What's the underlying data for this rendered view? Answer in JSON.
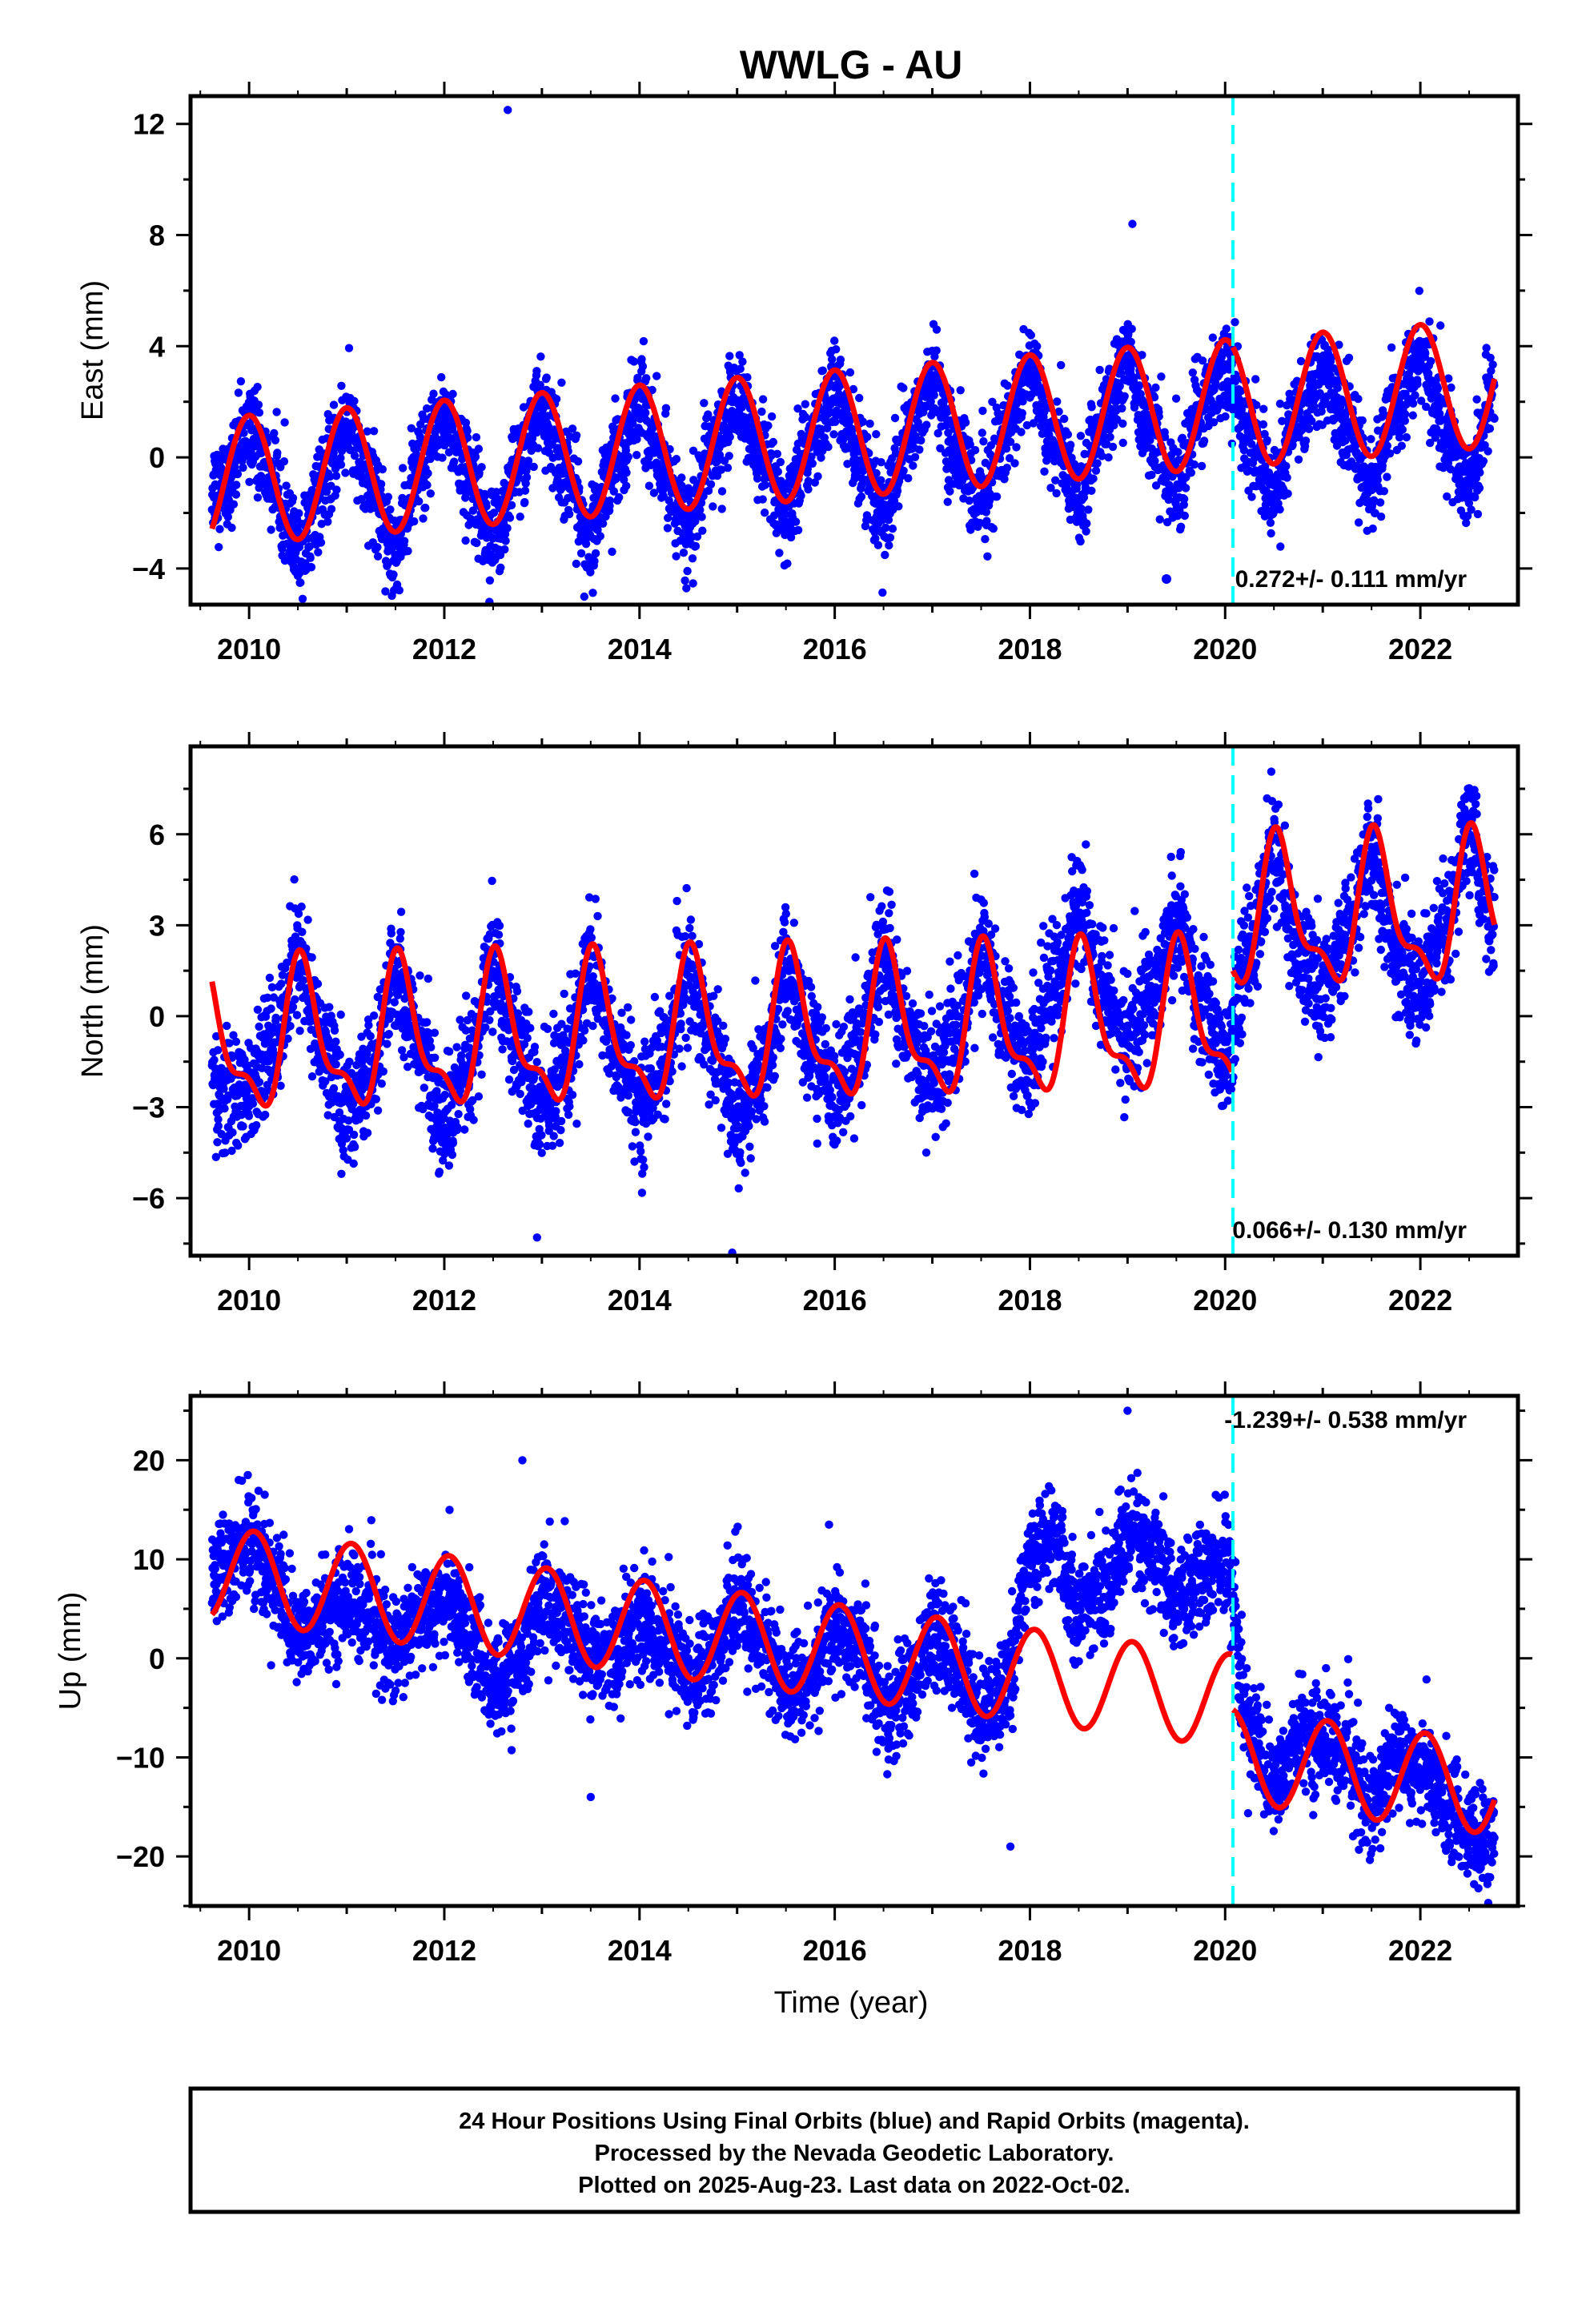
{
  "chart_data": [
    {
      "type": "scatter",
      "title": "WWLG - AU",
      "ylabel": "East (mm)",
      "xlabel": "",
      "xlim": [
        2009.4,
        2023.0
      ],
      "ylim": [
        -5.3,
        13.0
      ],
      "xticks": [
        2010,
        2012,
        2014,
        2016,
        2018,
        2020,
        2022
      ],
      "yticks": [
        -4,
        0,
        4,
        8,
        12
      ],
      "break_year": 2020.08,
      "rate_label": "0.272+/- 0.111 mm/yr",
      "rate_marker": true,
      "grid": false,
      "series": [
        {
          "color": "#0000ff",
          "kind": "daily-points",
          "x": [
            2009.75,
            2010.0,
            2010.25,
            2010.5,
            2010.75,
            2011.0,
            2011.25,
            2011.5,
            2011.75,
            2012.0,
            2012.25,
            2012.5,
            2012.75,
            2013.0,
            2013.25,
            2013.5,
            2013.75,
            2014.0,
            2014.25,
            2014.5,
            2014.75,
            2015.0,
            2015.25,
            2015.5,
            2015.75,
            2016.0,
            2016.25,
            2016.5,
            2016.75,
            2017.0,
            2017.25,
            2017.5,
            2017.75,
            2018.0,
            2018.25,
            2018.5,
            2018.75,
            2019.0,
            2019.25,
            2019.5,
            2019.75,
            2020.0,
            2020.25,
            2020.5,
            2020.75,
            2021.0,
            2021.25,
            2021.5,
            2021.75,
            2022.0,
            2022.25,
            2022.5,
            2022.75
          ],
          "y": [
            -1.0,
            1.0,
            -0.8,
            -3.5,
            -1.0,
            1.2,
            -1.0,
            -3.2,
            -0.5,
            1.5,
            -0.6,
            -3.0,
            -0.3,
            1.7,
            -0.5,
            -2.7,
            -0.1,
            2.0,
            -0.4,
            -2.5,
            0.2,
            2.2,
            -0.2,
            -2.2,
            0.5,
            2.4,
            0.0,
            -2.0,
            0.7,
            2.7,
            0.2,
            -1.6,
            1.0,
            3.0,
            0.6,
            -1.3,
            1.3,
            3.3,
            0.8,
            -1.1,
            1.7,
            3.4,
            0.8,
            -1.3,
            1.5,
            3.3,
            0.9,
            -1.0,
            1.8,
            3.6,
            0.9,
            -0.8,
            2.2
          ],
          "noise": 0.85,
          "outliers": [
            {
              "x": 2012.65,
              "y": 12.5
            },
            {
              "x": 2019.05,
              "y": 8.4
            }
          ]
        },
        {
          "color": "#ff0000",
          "kind": "model",
          "offset": 2009.75,
          "offset_value": -0.86,
          "slope": 0.272,
          "annual_amp": 2.3,
          "annual_phase": 2010.0,
          "semi_amp": 0.0,
          "semi_phase": 2010.0,
          "jump": 0.0
        }
      ]
    },
    {
      "type": "scatter",
      "title": "",
      "ylabel": "North (mm)",
      "xlabel": "",
      "xlim": [
        2009.4,
        2023.0
      ],
      "ylim": [
        -7.9,
        8.9
      ],
      "xticks": [
        2010,
        2012,
        2014,
        2016,
        2018,
        2020,
        2022
      ],
      "yticks": [
        -6,
        -3,
        0,
        3,
        6
      ],
      "break_year": 2020.08,
      "rate_label": "0.066+/- 0.130 mm/yr",
      "rate_marker": false,
      "grid": false,
      "series": [
        {
          "color": "#0000ff",
          "kind": "daily-points",
          "x": [
            2009.75,
            2010.0,
            2010.25,
            2010.5,
            2010.75,
            2011.0,
            2011.25,
            2011.5,
            2011.75,
            2012.0,
            2012.25,
            2012.5,
            2012.75,
            2013.0,
            2013.25,
            2013.5,
            2013.75,
            2014.0,
            2014.25,
            2014.5,
            2014.75,
            2015.0,
            2015.25,
            2015.5,
            2015.75,
            2016.0,
            2016.25,
            2016.5,
            2016.75,
            2017.0,
            2017.25,
            2017.5,
            2017.75,
            2018.0,
            2018.25,
            2018.5,
            2018.75,
            2019.0,
            2019.25,
            2019.5,
            2019.75,
            2020.0,
            2020.25,
            2020.5,
            2020.75,
            2021.0,
            2021.25,
            2021.5,
            2021.75,
            2022.0,
            2022.25,
            2022.5,
            2022.75
          ],
          "y": [
            -2.5,
            -2.5,
            -1.0,
            2.0,
            -1.0,
            -3.0,
            -2.0,
            1.5,
            -1.0,
            -3.5,
            -2.0,
            1.5,
            -1.0,
            -3.0,
            -1.5,
            1.5,
            -1.0,
            -3.0,
            -1.5,
            1.5,
            -1.0,
            -3.5,
            -2.0,
            1.5,
            -1.0,
            -2.5,
            -1.0,
            2.0,
            -0.5,
            -2.0,
            -0.5,
            2.0,
            0.0,
            -1.5,
            1.0,
            3.5,
            1.0,
            -1.0,
            1.0,
            3.0,
            0.5,
            -1.5,
            2.0,
            5.5,
            2.0,
            1.0,
            2.5,
            5.5,
            2.0,
            1.0,
            2.5,
            6.0,
            3.0
          ],
          "noise": 0.95,
          "outliers": [
            {
              "x": 2012.95,
              "y": -7.3
            },
            {
              "x": 2014.95,
              "y": -7.8
            }
          ]
        },
        {
          "color": "#ff0000",
          "kind": "model",
          "offset": 2009.75,
          "offset_value": -0.9,
          "slope": 0.066,
          "annual_amp": 2.2,
          "annual_phase": 2010.55,
          "semi_amp": 0.9,
          "semi_phase": 2010.5,
          "jump": 3.4
        }
      ]
    },
    {
      "type": "scatter",
      "title": "",
      "ylabel": "Up (mm)",
      "xlabel": "Time (year)",
      "xlim": [
        2009.4,
        2023.0
      ],
      "ylim": [
        -25.0,
        26.5
      ],
      "xticks": [
        2010,
        2012,
        2014,
        2016,
        2018,
        2020,
        2022
      ],
      "yticks": [
        -20,
        -10,
        0,
        10,
        20
      ],
      "break_year": 2020.08,
      "rate_label": "-1.239+/- 0.538 mm/yr",
      "rate_marker": false,
      "grid": false,
      "series": [
        {
          "color": "#0000ff",
          "kind": "daily-points",
          "x": [
            2009.75,
            2010.0,
            2010.25,
            2010.5,
            2010.75,
            2011.0,
            2011.25,
            2011.5,
            2011.75,
            2012.0,
            2012.25,
            2012.5,
            2012.75,
            2013.0,
            2013.25,
            2013.5,
            2013.75,
            2014.0,
            2014.25,
            2014.5,
            2014.75,
            2015.0,
            2015.25,
            2015.5,
            2015.75,
            2016.0,
            2016.25,
            2016.5,
            2016.75,
            2017.0,
            2017.25,
            2017.5,
            2017.75,
            2018.0,
            2018.25,
            2018.5,
            2018.75,
            2019.0,
            2019.25,
            2019.5,
            2019.75,
            2020.0,
            2020.25,
            2020.5,
            2020.75,
            2021.0,
            2021.25,
            2021.5,
            2021.75,
            2022.0,
            2022.25,
            2022.5,
            2022.75
          ],
          "y": [
            9.0,
            12.0,
            8.0,
            2.0,
            4.0,
            6.0,
            4.0,
            1.0,
            4.0,
            6.0,
            3.0,
            -3.0,
            -1.0,
            6.0,
            4.0,
            0.0,
            1.0,
            4.0,
            2.0,
            -2.0,
            1.0,
            5.0,
            2.0,
            -3.0,
            -2.0,
            3.0,
            2.0,
            -6.0,
            -3.0,
            2.0,
            0.0,
            -6.0,
            -3.0,
            10.0,
            12.0,
            5.0,
            7.0,
            12.0,
            10.0,
            6.0,
            8.0,
            10.0,
            -7.0,
            -13.0,
            -8.0,
            -8.0,
            -10.0,
            -15.0,
            -10.0,
            -11.0,
            -14.0,
            -18.0,
            -19.0
          ],
          "noise": 2.6,
          "outliers": [
            {
              "x": 2012.8,
              "y": 20.0
            },
            {
              "x": 2019.0,
              "y": 25.0
            },
            {
              "x": 2017.8,
              "y": -19.0
            },
            {
              "x": 2013.5,
              "y": -14.0
            }
          ]
        },
        {
          "color": "#ff0000",
          "kind": "model",
          "offset": 2009.75,
          "offset_value": 8.5,
          "slope": -1.239,
          "annual_amp": 4.7,
          "annual_phase": 2010.05,
          "semi_amp": 0.0,
          "semi_phase": 2010.0,
          "jump": -5.5
        }
      ]
    }
  ],
  "footer": {
    "line1": "24 Hour Positions Using Final Orbits (blue) and Rapid Orbits (magenta).",
    "line2": "Processed by the Nevada Geodetic Laboratory.",
    "line3": "Plotted on 2025-Aug-23. Last data on 2022-Oct-02."
  }
}
